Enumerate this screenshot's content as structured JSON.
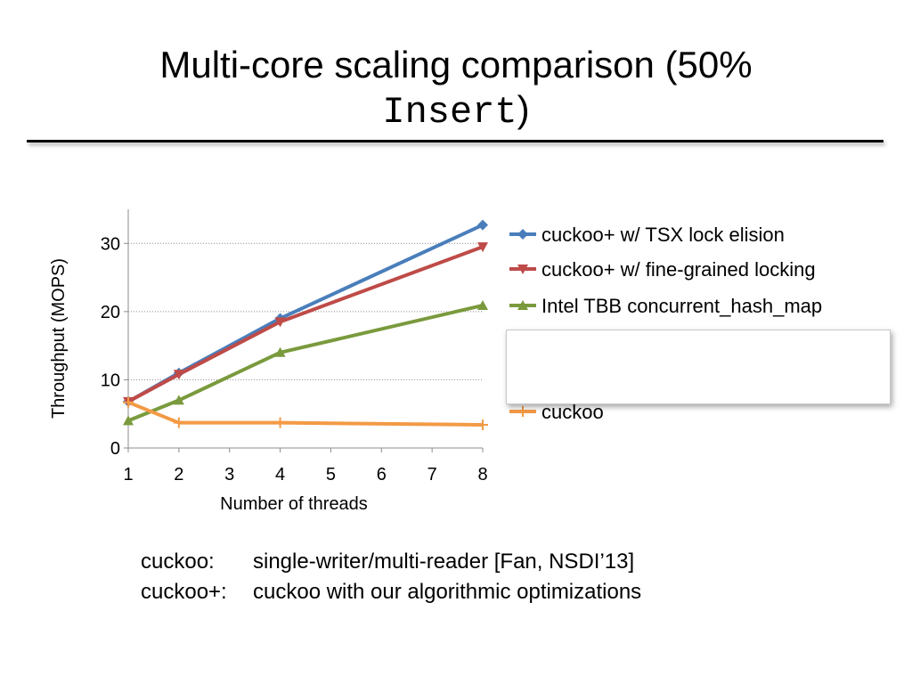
{
  "slide": {
    "title_main": "Multi-core scaling comparison (50% ",
    "title_mono": "Insert",
    "title_close": ")",
    "notes": [
      {
        "key": "cuckoo:",
        "text": "single-writer/multi-reader [Fan, NSDI’13]"
      },
      {
        "key": "cuckoo+:",
        "text": "cuckoo with our algorithmic optimizations"
      }
    ]
  },
  "chart_data": {
    "type": "line",
    "title": "",
    "xlabel": "Number of threads",
    "ylabel": "Throughput (MOPS)",
    "x_ticks": [
      1,
      2,
      3,
      4,
      5,
      6,
      7,
      8
    ],
    "y_ticks": [
      0,
      10,
      20,
      30
    ],
    "xlim": [
      1,
      8
    ],
    "ylim": [
      0,
      35
    ],
    "grid": "horizontal",
    "legend_position": "right",
    "series": [
      {
        "name": "cuckoo+ w/ TSX lock elision",
        "color": "#4a7ebb",
        "marker": "diamond",
        "x": [
          1,
          2,
          4,
          8
        ],
        "values": [
          6.8,
          11.0,
          19.0,
          32.7
        ]
      },
      {
        "name": "cuckoo+ w/ fine-grained locking",
        "color": "#be4b48",
        "marker": "triangle-down",
        "x": [
          1,
          2,
          4,
          8
        ],
        "values": [
          6.8,
          10.8,
          18.5,
          29.5
        ]
      },
      {
        "name": "Intel TBB concurrent_hash_map",
        "color": "#7a9a3d",
        "marker": "triangle",
        "x": [
          1,
          2,
          4,
          8
        ],
        "values": [
          4.0,
          7.0,
          14.0,
          20.9
        ]
      },
      {
        "name": "cuckoo",
        "color": "#f39a45",
        "marker": "plus",
        "x": [
          1,
          2,
          4,
          8
        ],
        "values": [
          6.7,
          3.7,
          3.7,
          3.4
        ]
      }
    ]
  }
}
